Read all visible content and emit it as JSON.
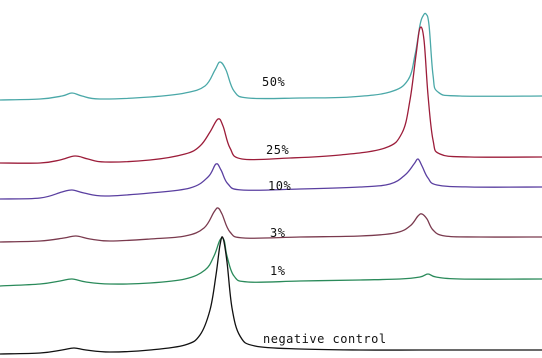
{
  "chart_data": {
    "type": "line",
    "title": "",
    "xlabel": "",
    "ylabel": "",
    "grid": false,
    "legend": "none",
    "series": [
      {
        "name": "50%",
        "color": "#4aa8a8",
        "baseline": 100,
        "points": [
          [
            0,
            100
          ],
          [
            40,
            99
          ],
          [
            62,
            96
          ],
          [
            72,
            93
          ],
          [
            82,
            96
          ],
          [
            100,
            99
          ],
          [
            150,
            97
          ],
          [
            185,
            93
          ],
          [
            205,
            86
          ],
          [
            215,
            70
          ],
          [
            220,
            62
          ],
          [
            226,
            70
          ],
          [
            234,
            91
          ],
          [
            248,
            98
          ],
          [
            300,
            98
          ],
          [
            350,
            97
          ],
          [
            390,
            92
          ],
          [
            408,
            80
          ],
          [
            415,
            55
          ],
          [
            420,
            25
          ],
          [
            423,
            16
          ],
          [
            426,
            14
          ],
          [
            429,
            25
          ],
          [
            433,
            75
          ],
          [
            438,
            92
          ],
          [
            460,
            96
          ],
          [
            542,
            96
          ]
        ]
      },
      {
        "name": "25%",
        "color": "#9c1d3a",
        "baseline": 163,
        "points": [
          [
            0,
            163
          ],
          [
            40,
            163
          ],
          [
            60,
            160
          ],
          [
            75,
            156
          ],
          [
            88,
            159
          ],
          [
            105,
            162
          ],
          [
            150,
            160
          ],
          [
            185,
            154
          ],
          [
            200,
            146
          ],
          [
            210,
            132
          ],
          [
            218,
            119
          ],
          [
            223,
            126
          ],
          [
            230,
            148
          ],
          [
            242,
            159
          ],
          [
            290,
            158
          ],
          [
            340,
            155
          ],
          [
            385,
            148
          ],
          [
            402,
            133
          ],
          [
            410,
            100
          ],
          [
            416,
            55
          ],
          [
            420,
            28
          ],
          [
            424,
            40
          ],
          [
            428,
            95
          ],
          [
            433,
            140
          ],
          [
            440,
            154
          ],
          [
            470,
            157
          ],
          [
            542,
            157
          ]
        ]
      },
      {
        "name": "10%",
        "color": "#5a3fa0",
        "baseline": 199,
        "points": [
          [
            0,
            199
          ],
          [
            40,
            198
          ],
          [
            62,
            192
          ],
          [
            72,
            190
          ],
          [
            84,
            193
          ],
          [
            105,
            196
          ],
          [
            150,
            193
          ],
          [
            190,
            188
          ],
          [
            208,
            177
          ],
          [
            216,
            164
          ],
          [
            221,
            170
          ],
          [
            228,
            184
          ],
          [
            242,
            190
          ],
          [
            300,
            189
          ],
          [
            360,
            187
          ],
          [
            390,
            184
          ],
          [
            405,
            175
          ],
          [
            414,
            164
          ],
          [
            418,
            159
          ],
          [
            422,
            166
          ],
          [
            428,
            178
          ],
          [
            437,
            185
          ],
          [
            470,
            187
          ],
          [
            542,
            187
          ]
        ]
      },
      {
        "name": "3%",
        "color": "#7a3a4e",
        "baseline": 242,
        "points": [
          [
            0,
            242
          ],
          [
            40,
            241
          ],
          [
            64,
            238
          ],
          [
            76,
            236
          ],
          [
            90,
            239
          ],
          [
            110,
            241
          ],
          [
            150,
            239
          ],
          [
            185,
            236
          ],
          [
            204,
            228
          ],
          [
            214,
            212
          ],
          [
            218,
            208
          ],
          [
            222,
            214
          ],
          [
            230,
            232
          ],
          [
            244,
            238
          ],
          [
            300,
            237
          ],
          [
            360,
            236
          ],
          [
            395,
            233
          ],
          [
            410,
            226
          ],
          [
            418,
            216
          ],
          [
            422,
            214
          ],
          [
            427,
            219
          ],
          [
            433,
            230
          ],
          [
            445,
            236
          ],
          [
            480,
            237
          ],
          [
            542,
            237
          ]
        ]
      },
      {
        "name": "1%",
        "color": "#2a8a5a",
        "baseline": 286,
        "points": [
          [
            0,
            286
          ],
          [
            40,
            284
          ],
          [
            60,
            281
          ],
          [
            72,
            279
          ],
          [
            86,
            282
          ],
          [
            110,
            284
          ],
          [
            150,
            283
          ],
          [
            185,
            279
          ],
          [
            205,
            270
          ],
          [
            214,
            256
          ],
          [
            220,
            240
          ],
          [
            224,
            240
          ],
          [
            227,
            256
          ],
          [
            234,
            276
          ],
          [
            248,
            282
          ],
          [
            300,
            281
          ],
          [
            360,
            280
          ],
          [
            400,
            279
          ],
          [
            420,
            277
          ],
          [
            428,
            274
          ],
          [
            436,
            277
          ],
          [
            460,
            279
          ],
          [
            542,
            279
          ]
        ]
      },
      {
        "name": "negative control",
        "color": "#111111",
        "baseline": 354,
        "points": [
          [
            0,
            354
          ],
          [
            40,
            353
          ],
          [
            62,
            350
          ],
          [
            74,
            348
          ],
          [
            86,
            350
          ],
          [
            110,
            352
          ],
          [
            150,
            350
          ],
          [
            185,
            345
          ],
          [
            200,
            335
          ],
          [
            210,
            310
          ],
          [
            216,
            275
          ],
          [
            220,
            245
          ],
          [
            223,
            238
          ],
          [
            227,
            262
          ],
          [
            232,
            308
          ],
          [
            240,
            336
          ],
          [
            255,
            346
          ],
          [
            300,
            349
          ],
          [
            360,
            350
          ],
          [
            420,
            350
          ],
          [
            480,
            350
          ],
          [
            542,
            350
          ]
        ]
      }
    ]
  },
  "labels": {
    "l50": "50%",
    "l25": "25%",
    "l10": "10%",
    "l3": "3%",
    "l1": "1%",
    "lneg": "negative control"
  }
}
